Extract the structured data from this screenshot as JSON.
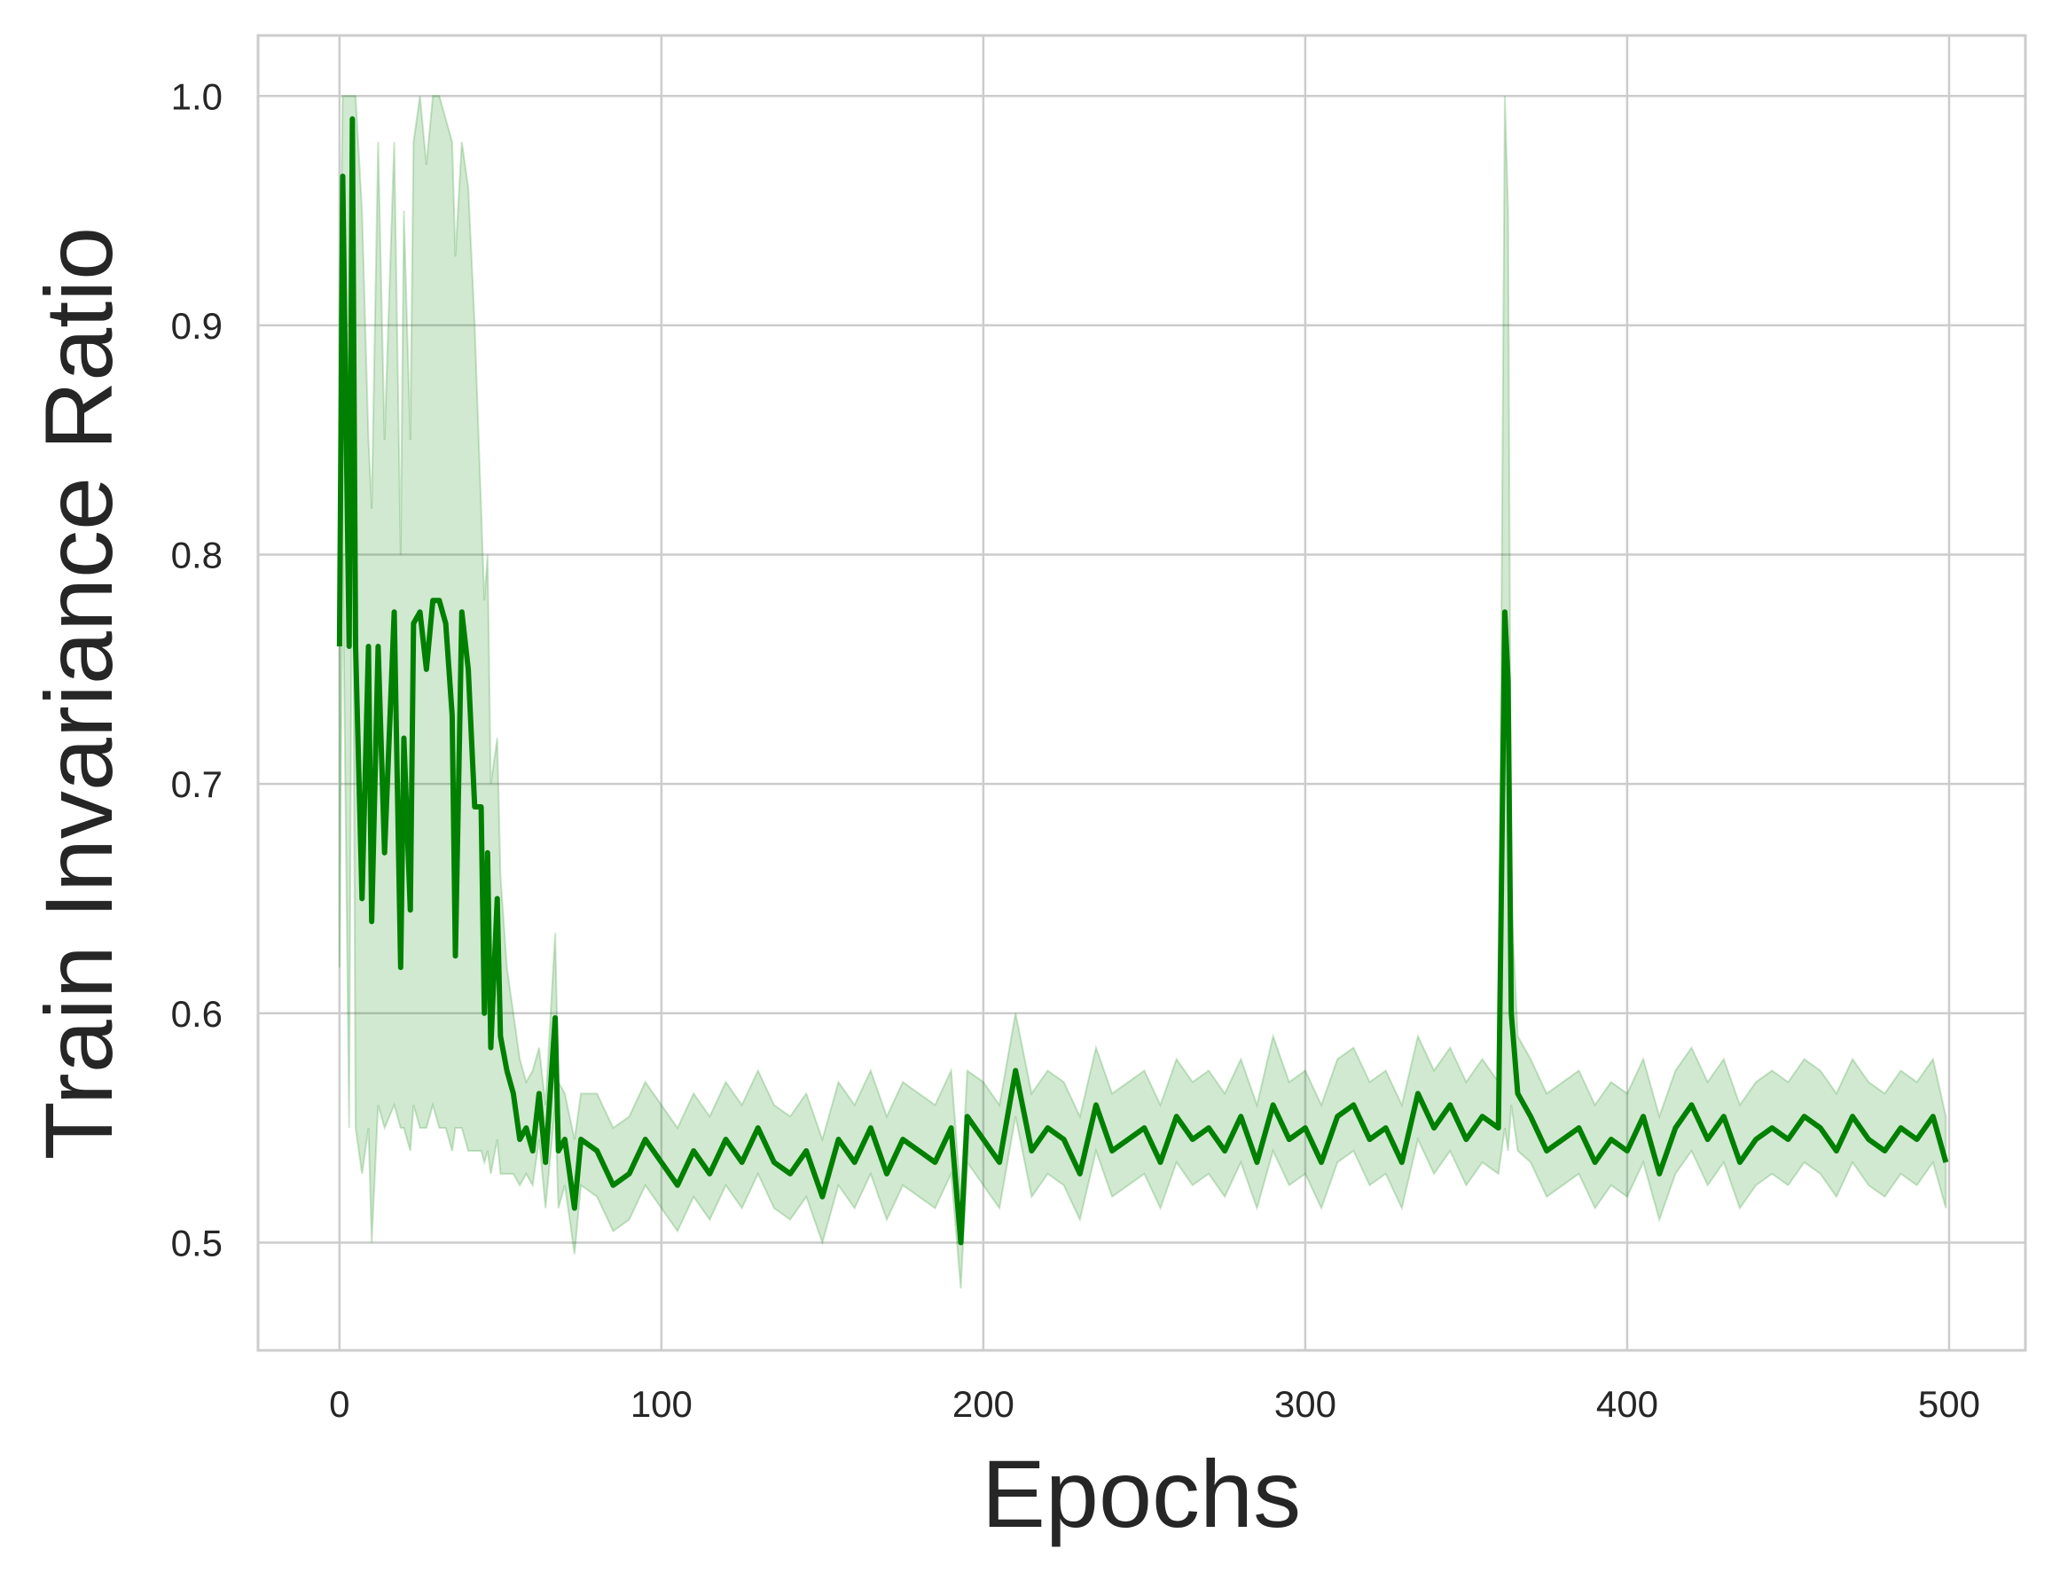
{
  "chart_data": {
    "type": "line",
    "x_label": "Epochs",
    "y_label": "Train Invariance Ratio",
    "x": [
      0,
      1,
      3,
      4,
      5,
      7,
      9,
      10,
      12,
      14,
      17,
      19,
      20,
      22,
      23,
      25,
      27,
      29,
      31,
      33,
      35,
      36,
      38,
      40,
      42,
      44,
      45,
      46,
      47,
      49,
      50,
      52,
      54,
      56,
      58,
      60,
      62,
      64,
      67,
      68,
      70,
      73,
      75,
      80,
      85,
      90,
      95,
      100,
      105,
      110,
      115,
      120,
      125,
      130,
      135,
      140,
      145,
      150,
      155,
      160,
      165,
      170,
      175,
      180,
      185,
      190,
      193,
      195,
      200,
      205,
      210,
      215,
      220,
      225,
      230,
      235,
      240,
      245,
      250,
      255,
      260,
      265,
      270,
      275,
      280,
      285,
      290,
      295,
      300,
      305,
      310,
      315,
      320,
      325,
      330,
      335,
      340,
      345,
      350,
      355,
      360,
      362,
      363,
      364,
      366,
      370,
      375,
      380,
      385,
      390,
      395,
      400,
      405,
      410,
      415,
      420,
      425,
      430,
      435,
      440,
      445,
      450,
      455,
      460,
      465,
      470,
      475,
      480,
      485,
      490,
      495,
      499
    ],
    "series": [
      {
        "color": "#008000",
        "values": [
          0.76,
          0.965,
          0.76,
          0.99,
          0.76,
          0.65,
          0.76,
          0.64,
          0.76,
          0.67,
          0.775,
          0.62,
          0.72,
          0.645,
          0.77,
          0.775,
          0.75,
          0.78,
          0.78,
          0.77,
          0.73,
          0.625,
          0.775,
          0.75,
          0.69,
          0.69,
          0.6,
          0.67,
          0.585,
          0.65,
          0.59,
          0.575,
          0.565,
          0.545,
          0.55,
          0.54,
          0.565,
          0.535,
          0.598,
          0.54,
          0.545,
          0.515,
          0.545,
          0.54,
          0.525,
          0.53,
          0.545,
          0.535,
          0.525,
          0.54,
          0.53,
          0.545,
          0.535,
          0.55,
          0.535,
          0.53,
          0.54,
          0.52,
          0.545,
          0.535,
          0.55,
          0.53,
          0.545,
          0.54,
          0.535,
          0.55,
          0.5,
          0.555,
          0.545,
          0.535,
          0.575,
          0.54,
          0.55,
          0.545,
          0.53,
          0.56,
          0.54,
          0.545,
          0.55,
          0.535,
          0.555,
          0.545,
          0.55,
          0.54,
          0.555,
          0.535,
          0.56,
          0.545,
          0.55,
          0.535,
          0.555,
          0.56,
          0.545,
          0.55,
          0.535,
          0.565,
          0.55,
          0.56,
          0.545,
          0.555,
          0.55,
          0.775,
          0.745,
          0.6,
          0.565,
          0.555,
          0.54,
          0.545,
          0.55,
          0.535,
          0.545,
          0.54,
          0.555,
          0.53,
          0.55,
          0.56,
          0.545,
          0.555,
          0.535,
          0.545,
          0.55,
          0.545,
          0.555,
          0.55,
          0.54,
          0.555,
          0.545,
          0.54,
          0.55,
          0.545,
          0.555,
          0.535
        ]
      }
    ],
    "band": {
      "color": "#008000",
      "upper": [
        0.9,
        1.0,
        1.0,
        1.0,
        1.0,
        0.95,
        0.85,
        0.82,
        0.98,
        0.85,
        0.98,
        0.8,
        0.95,
        0.85,
        0.98,
        1.0,
        0.97,
        1.0,
        1.0,
        0.99,
        0.98,
        0.93,
        0.98,
        0.96,
        0.9,
        0.82,
        0.78,
        0.8,
        0.7,
        0.72,
        0.66,
        0.62,
        0.6,
        0.58,
        0.57,
        0.575,
        0.585,
        0.56,
        0.635,
        0.57,
        0.565,
        0.545,
        0.565,
        0.565,
        0.55,
        0.555,
        0.57,
        0.56,
        0.55,
        0.565,
        0.555,
        0.57,
        0.56,
        0.575,
        0.56,
        0.555,
        0.565,
        0.545,
        0.57,
        0.56,
        0.575,
        0.555,
        0.57,
        0.565,
        0.56,
        0.575,
        0.52,
        0.575,
        0.57,
        0.56,
        0.6,
        0.565,
        0.575,
        0.57,
        0.555,
        0.585,
        0.565,
        0.57,
        0.575,
        0.56,
        0.58,
        0.57,
        0.575,
        0.565,
        0.58,
        0.56,
        0.59,
        0.57,
        0.575,
        0.56,
        0.58,
        0.585,
        0.57,
        0.575,
        0.56,
        0.59,
        0.575,
        0.585,
        0.57,
        0.58,
        0.57,
        1.0,
        0.95,
        0.65,
        0.59,
        0.58,
        0.565,
        0.57,
        0.575,
        0.56,
        0.57,
        0.565,
        0.58,
        0.555,
        0.575,
        0.585,
        0.57,
        0.58,
        0.56,
        0.57,
        0.575,
        0.57,
        0.58,
        0.575,
        0.565,
        0.58,
        0.57,
        0.565,
        0.575,
        0.57,
        0.58,
        0.555
      ],
      "lower": [
        0.62,
        0.8,
        0.55,
        0.85,
        0.55,
        0.53,
        0.55,
        0.5,
        0.56,
        0.55,
        0.56,
        0.55,
        0.55,
        0.54,
        0.56,
        0.55,
        0.55,
        0.56,
        0.55,
        0.55,
        0.54,
        0.55,
        0.55,
        0.54,
        0.54,
        0.54,
        0.535,
        0.54,
        0.53,
        0.545,
        0.53,
        0.53,
        0.53,
        0.525,
        0.53,
        0.525,
        0.545,
        0.515,
        0.56,
        0.515,
        0.525,
        0.495,
        0.525,
        0.52,
        0.505,
        0.51,
        0.525,
        0.515,
        0.505,
        0.52,
        0.51,
        0.525,
        0.515,
        0.53,
        0.515,
        0.51,
        0.52,
        0.5,
        0.525,
        0.515,
        0.53,
        0.51,
        0.525,
        0.52,
        0.515,
        0.53,
        0.48,
        0.535,
        0.525,
        0.515,
        0.555,
        0.52,
        0.53,
        0.525,
        0.51,
        0.54,
        0.52,
        0.525,
        0.53,
        0.515,
        0.535,
        0.525,
        0.53,
        0.52,
        0.535,
        0.515,
        0.54,
        0.525,
        0.53,
        0.515,
        0.535,
        0.54,
        0.525,
        0.53,
        0.515,
        0.545,
        0.53,
        0.54,
        0.525,
        0.535,
        0.53,
        0.55,
        0.54,
        0.56,
        0.54,
        0.535,
        0.52,
        0.525,
        0.53,
        0.515,
        0.525,
        0.52,
        0.535,
        0.51,
        0.53,
        0.54,
        0.525,
        0.535,
        0.515,
        0.525,
        0.53,
        0.525,
        0.535,
        0.53,
        0.52,
        0.535,
        0.525,
        0.52,
        0.53,
        0.525,
        0.535,
        0.515
      ]
    },
    "xlim": [
      -25.3,
      523.7
    ],
    "ylim": [
      0.453,
      1.0264
    ],
    "xticks": [
      0,
      100,
      200,
      300,
      400,
      500
    ],
    "yticks": [
      0.5,
      0.6,
      0.7,
      0.8,
      0.9,
      {
        "value": 1,
        "label": "1.0"
      }
    ],
    "grid": true
  }
}
